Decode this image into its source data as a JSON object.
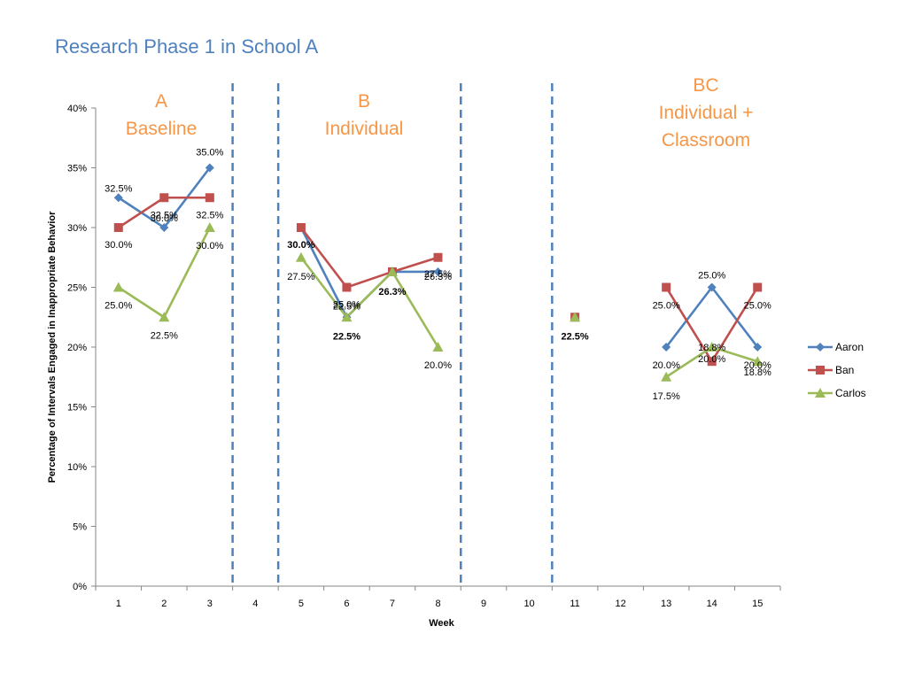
{
  "page": {
    "title": "Research Phase 1 in School A"
  },
  "phases": [
    {
      "lines": [
        "A",
        "Baseline"
      ]
    },
    {
      "lines": [
        "B",
        "Individual"
      ]
    },
    {
      "lines": [
        "BC",
        "Individual +",
        "Classroom"
      ]
    }
  ],
  "phase_change_weeks": [
    3.5,
    4.5,
    8.5,
    10.5
  ],
  "chart_data": {
    "type": "line",
    "title": "Research Phase 1 in School A",
    "xlabel": "Week",
    "ylabel": "Percentage of Intervals Engaged in Inappropriate Behavior",
    "x": [
      1,
      2,
      3,
      4,
      5,
      6,
      7,
      8,
      9,
      10,
      11,
      12,
      13,
      14,
      15
    ],
    "xticks": [
      "1",
      "2",
      "3",
      "4",
      "5",
      "6",
      "7",
      "8",
      "9",
      "10",
      "11",
      "12",
      "13",
      "14",
      "15"
    ],
    "ylim": [
      0,
      40
    ],
    "yticks": [
      "0%",
      "5%",
      "10%",
      "15%",
      "20%",
      "25%",
      "30%",
      "35%",
      "40%"
    ],
    "grid": false,
    "legend_position": "right",
    "series": [
      {
        "name": "Aaron",
        "color": "#4f81bd",
        "marker": "diamond",
        "values": [
          32.5,
          30.0,
          35.0,
          null,
          30.0,
          22.5,
          26.3,
          26.3,
          null,
          null,
          22.5,
          null,
          20.0,
          25.0,
          20.0
        ],
        "labels": [
          "32.5%",
          "30.0%",
          "35.0%",
          null,
          "30.0%",
          "22.5%",
          "26.3%",
          "26.3%",
          null,
          null,
          "22.5%",
          null,
          "20.0%",
          "25.0%",
          "20.0%"
        ]
      },
      {
        "name": "Ban",
        "color": "#c0504d",
        "marker": "square",
        "values": [
          30.0,
          32.5,
          32.5,
          null,
          30.0,
          25.0,
          26.3,
          27.5,
          null,
          null,
          22.5,
          null,
          25.0,
          18.8,
          25.0
        ],
        "labels": [
          "30.0%",
          "32.5%",
          "32.5%",
          null,
          "30.0%",
          "25.0%",
          "26.3%",
          "27.5%",
          null,
          null,
          "22.5%",
          null,
          "25.0%",
          "18.8%",
          "25.0%"
        ]
      },
      {
        "name": "Carlos",
        "color": "#9bbb59",
        "marker": "triangle",
        "values": [
          25.0,
          22.5,
          30.0,
          null,
          27.5,
          22.5,
          26.3,
          20.0,
          null,
          null,
          22.5,
          null,
          17.5,
          20.0,
          18.8
        ],
        "labels": [
          "25.0%",
          "22.5%",
          "30.0%",
          null,
          "27.5%",
          "22.5%",
          "26.3%",
          "20.0%",
          null,
          null,
          "22.5%",
          null,
          "17.5%",
          "20.0%",
          "18.8%"
        ]
      }
    ]
  }
}
